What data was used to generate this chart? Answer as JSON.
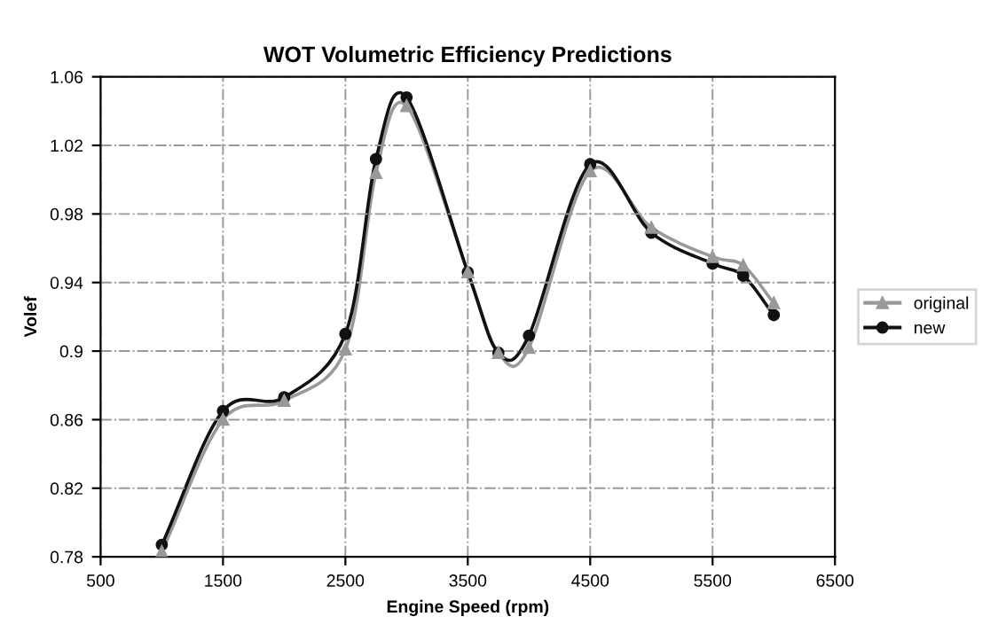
{
  "chart_data": {
    "type": "line",
    "title": "WOT Volumetric Efficiency Predictions",
    "xlabel": "Engine Speed (rpm)",
    "ylabel": "Volef",
    "x": [
      1000,
      1500,
      2000,
      2500,
      2750,
      3000,
      3500,
      3750,
      4000,
      4500,
      5000,
      5500,
      5750,
      6000
    ],
    "series": [
      {
        "name": "original",
        "color": "#999999",
        "marker": "triangle",
        "values": [
          0.783,
          0.86,
          0.871,
          0.901,
          1.004,
          1.043,
          0.946,
          0.899,
          0.902,
          1.005,
          0.972,
          0.955,
          0.95,
          0.928
        ]
      },
      {
        "name": "new",
        "color": "#111111",
        "marker": "circle",
        "values": [
          0.787,
          0.865,
          0.873,
          0.91,
          1.012,
          1.048,
          0.946,
          0.899,
          0.909,
          1.009,
          0.969,
          0.951,
          0.944,
          0.921
        ]
      }
    ],
    "xlim": [
      500,
      6500
    ],
    "xticks": [
      500,
      1500,
      2500,
      3500,
      4500,
      5500,
      6500
    ],
    "ylim": [
      0.78,
      1.06
    ],
    "yticks": [
      0.78,
      0.82,
      0.86,
      0.9,
      0.94,
      0.98,
      1.02,
      1.06
    ],
    "grid": true,
    "legend": "right",
    "line_style": "solid"
  }
}
